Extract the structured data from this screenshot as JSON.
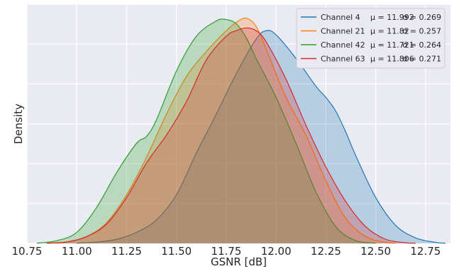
{
  "chart_data": {
    "type": "area",
    "title": "",
    "xlabel": "GSNR [dB]",
    "ylabel": "Density",
    "xlim": [
      10.75,
      12.875
    ],
    "ylim": [
      0,
      1.72
    ],
    "xticks": [
      "10.75",
      "11.00",
      "11.25",
      "11.50",
      "11.75",
      "12.00",
      "12.25",
      "12.50",
      "12.75"
    ],
    "y_tick_labels_visible": false,
    "grid": true,
    "background": "#eaeaf2",
    "legend_position": "top-right",
    "series": [
      {
        "name": "Channel 4",
        "mu_text": "11.992",
        "sigma_text": "0.269",
        "color": "#1f77b4",
        "x": [
          11.0,
          11.1,
          11.2,
          11.3,
          11.4,
          11.5,
          11.6,
          11.7,
          11.8,
          11.9,
          11.95,
          12.0,
          12.1,
          12.2,
          12.25,
          12.3,
          12.35,
          12.4,
          12.5,
          12.6,
          12.7,
          12.8,
          12.85
        ],
        "y": [
          0.002,
          0.01,
          0.03,
          0.08,
          0.17,
          0.35,
          0.65,
          0.93,
          1.22,
          1.47,
          1.53,
          1.5,
          1.33,
          1.13,
          1.05,
          0.95,
          0.8,
          0.63,
          0.33,
          0.13,
          0.04,
          0.008,
          0.002
        ]
      },
      {
        "name": "Channel 21",
        "mu_text": "11.82",
        "sigma_text": "0.257",
        "color": "#ff7f0e",
        "x": [
          10.85,
          10.95,
          11.05,
          11.15,
          11.25,
          11.35,
          11.45,
          11.55,
          11.65,
          11.75,
          11.8,
          11.85,
          11.9,
          11.95,
          12.05,
          12.15,
          12.25,
          12.35,
          12.45,
          12.55,
          12.6
        ],
        "y": [
          0.002,
          0.012,
          0.05,
          0.15,
          0.35,
          0.62,
          0.93,
          1.2,
          1.38,
          1.53,
          1.59,
          1.62,
          1.56,
          1.4,
          1.05,
          0.78,
          0.45,
          0.18,
          0.05,
          0.008,
          0.002
        ]
      },
      {
        "name": "Channel 42",
        "mu_text": "11.721",
        "sigma_text": "0.264",
        "color": "#2ca02c",
        "x": [
          10.8,
          10.9,
          11.0,
          11.1,
          11.2,
          11.3,
          11.35,
          11.4,
          11.5,
          11.6,
          11.7,
          11.75,
          11.8,
          11.85,
          11.9,
          12.0,
          12.1,
          12.2,
          12.3,
          12.4,
          12.5
        ],
        "y": [
          0.002,
          0.02,
          0.08,
          0.26,
          0.51,
          0.72,
          0.77,
          0.89,
          1.24,
          1.49,
          1.6,
          1.61,
          1.58,
          1.48,
          1.33,
          1.05,
          0.72,
          0.37,
          0.12,
          0.02,
          0.002
        ]
      },
      {
        "name": "Channel 63",
        "mu_text": "11.806",
        "sigma_text": "0.271",
        "color": "#d62728",
        "x": [
          10.85,
          10.95,
          11.05,
          11.15,
          11.25,
          11.35,
          11.45,
          11.55,
          11.65,
          11.75,
          11.8,
          11.85,
          11.9,
          11.95,
          12.05,
          12.15,
          12.25,
          12.35,
          12.45,
          12.55,
          12.65,
          12.7
        ],
        "y": [
          0.002,
          0.01,
          0.05,
          0.14,
          0.33,
          0.58,
          0.78,
          1.02,
          1.32,
          1.49,
          1.53,
          1.55,
          1.53,
          1.45,
          1.18,
          0.85,
          0.55,
          0.3,
          0.12,
          0.03,
          0.005,
          0.002
        ]
      }
    ]
  }
}
